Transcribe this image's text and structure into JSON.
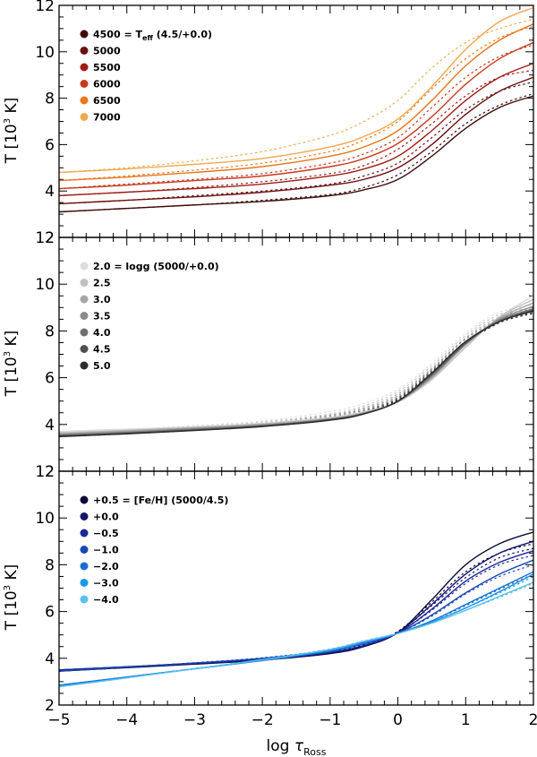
{
  "chart_data": [
    {
      "type": "line",
      "ylabel_main": "T [10",
      "ylabel_sup": "3",
      "ylabel_tail": " K]",
      "xlim": [
        -5,
        2
      ],
      "ylim": [
        2,
        12
      ],
      "yticks": [
        "2",
        "4",
        "6",
        "8",
        "10",
        "12"
      ],
      "legend_position": "top-left",
      "series": [
        {
          "name": "4500 = T",
          "name_sub": "eff",
          "name_tail": " (4.5/+0.0)",
          "color": "#3d0a0a",
          "x": [
            -5,
            -4,
            -3,
            -2,
            -1,
            -0.5,
            0,
            0.5,
            1,
            1.5,
            2
          ],
          "solid": [
            3.1,
            3.25,
            3.4,
            3.55,
            3.8,
            4.05,
            4.5,
            5.5,
            6.7,
            7.6,
            8.1
          ],
          "dashed": [
            3.1,
            3.25,
            3.4,
            3.6,
            3.85,
            4.15,
            4.7,
            5.7,
            6.9,
            7.7,
            8.2
          ]
        },
        {
          "name": "5000",
          "color": "#6b1010",
          "x": [
            -5,
            -4,
            -3,
            -2,
            -1,
            -0.5,
            0,
            0.5,
            1,
            1.5,
            2
          ],
          "solid": [
            3.45,
            3.6,
            3.75,
            3.95,
            4.25,
            4.5,
            5.0,
            6.0,
            7.3,
            8.3,
            8.9
          ],
          "dashed": [
            3.45,
            3.6,
            3.8,
            4.0,
            4.3,
            4.65,
            5.2,
            6.3,
            7.5,
            8.3,
            8.7
          ]
        },
        {
          "name": "5500",
          "color": "#9e1c16",
          "x": [
            -5,
            -4,
            -3,
            -2,
            -1,
            -0.5,
            0,
            0.5,
            1,
            1.5,
            2
          ],
          "solid": [
            3.8,
            3.95,
            4.1,
            4.3,
            4.65,
            4.95,
            5.5,
            6.6,
            7.9,
            8.9,
            9.5
          ],
          "dashed": [
            3.8,
            3.95,
            4.15,
            4.4,
            4.75,
            5.1,
            5.8,
            6.9,
            8.1,
            8.9,
            9.2
          ]
        },
        {
          "name": "6000",
          "color": "#c8381e",
          "x": [
            -5,
            -4,
            -3,
            -2,
            -1,
            -0.5,
            0,
            0.5,
            1,
            1.5,
            2
          ],
          "solid": [
            4.1,
            4.25,
            4.45,
            4.65,
            5.05,
            5.4,
            6.05,
            7.2,
            8.6,
            9.7,
            10.4
          ],
          "dashed": [
            4.1,
            4.3,
            4.5,
            4.75,
            5.2,
            5.6,
            6.3,
            7.6,
            8.9,
            9.8,
            10.3
          ]
        },
        {
          "name": "6500",
          "color": "#e8761e",
          "x": [
            -5,
            -4,
            -3,
            -2,
            -1,
            -0.5,
            0,
            0.5,
            1,
            1.5,
            2
          ],
          "solid": [
            4.45,
            4.6,
            4.8,
            5.05,
            5.5,
            5.9,
            6.6,
            7.9,
            9.4,
            10.5,
            11.2
          ],
          "dashed": [
            4.45,
            4.65,
            4.9,
            5.2,
            5.7,
            6.2,
            7.0,
            8.4,
            9.7,
            10.6,
            11.1
          ]
        },
        {
          "name": "7000",
          "color": "#f0a850",
          "x": [
            -5,
            -4,
            -3,
            -2,
            -1,
            -0.5,
            0,
            0.5,
            1,
            1.5,
            2
          ],
          "solid": [
            4.8,
            4.95,
            5.15,
            5.4,
            5.9,
            6.35,
            7.1,
            8.5,
            10.1,
            11.3,
            11.9
          ],
          "dashed": [
            4.8,
            5.0,
            5.3,
            5.7,
            6.4,
            7.0,
            7.9,
            9.3,
            10.4,
            11.0,
            11.4
          ]
        }
      ]
    },
    {
      "type": "line",
      "ylabel_main": "T [10",
      "ylabel_sup": "3",
      "ylabel_tail": " K]",
      "xlim": [
        -5,
        2
      ],
      "ylim": [
        2,
        12
      ],
      "yticks": [
        "2",
        "4",
        "6",
        "8",
        "10",
        "12"
      ],
      "legend_position": "top-left",
      "series": [
        {
          "name": "2.0 = logg (5000/+0.0)",
          "color": "#dcdcdc",
          "x": [
            -5,
            -4,
            -3,
            -2,
            -1,
            -0.5,
            0,
            0.5,
            1,
            1.5,
            2
          ],
          "solid": [
            3.7,
            3.8,
            3.9,
            4.05,
            4.3,
            4.55,
            4.95,
            5.9,
            7.3,
            8.6,
            9.5
          ],
          "dashed": [
            3.7,
            3.8,
            3.95,
            4.15,
            4.55,
            4.9,
            5.5,
            6.6,
            7.9,
            8.8,
            9.1
          ]
        },
        {
          "name": "2.5",
          "color": "#c0c0c0",
          "x": [
            -5,
            -4,
            -3,
            -2,
            -1,
            -0.5,
            0,
            0.5,
            1,
            1.5,
            2
          ],
          "solid": [
            3.65,
            3.75,
            3.88,
            4.03,
            4.28,
            4.52,
            4.97,
            5.95,
            7.3,
            8.6,
            9.35
          ],
          "dashed": [
            3.65,
            3.75,
            3.9,
            4.1,
            4.45,
            4.8,
            5.4,
            6.5,
            7.8,
            8.7,
            9.0
          ]
        },
        {
          "name": "3.0",
          "color": "#a6a6a6",
          "x": [
            -5,
            -4,
            -3,
            -2,
            -1,
            -0.5,
            0,
            0.5,
            1,
            1.5,
            2
          ],
          "solid": [
            3.6,
            3.72,
            3.85,
            4.0,
            4.25,
            4.5,
            4.97,
            6.0,
            7.4,
            8.55,
            9.2
          ],
          "dashed": [
            3.6,
            3.72,
            3.86,
            4.05,
            4.4,
            4.72,
            5.3,
            6.4,
            7.7,
            8.6,
            8.95
          ]
        },
        {
          "name": "3.5",
          "color": "#8c8c8c",
          "x": [
            -5,
            -4,
            -3,
            -2,
            -1,
            -0.5,
            0,
            0.5,
            1,
            1.5,
            2
          ],
          "solid": [
            3.57,
            3.68,
            3.82,
            3.97,
            4.23,
            4.48,
            4.98,
            6.05,
            7.45,
            8.5,
            9.05
          ],
          "dashed": [
            3.57,
            3.68,
            3.83,
            4.02,
            4.35,
            4.66,
            5.22,
            6.35,
            7.65,
            8.5,
            8.9
          ]
        },
        {
          "name": "4.0",
          "color": "#707070",
          "x": [
            -5,
            -4,
            -3,
            -2,
            -1,
            -0.5,
            0,
            0.5,
            1,
            1.5,
            2
          ],
          "solid": [
            3.54,
            3.65,
            3.79,
            3.95,
            4.22,
            4.47,
            4.99,
            6.1,
            7.45,
            8.45,
            8.95
          ],
          "dashed": [
            3.54,
            3.65,
            3.8,
            3.98,
            4.3,
            4.6,
            5.15,
            6.3,
            7.55,
            8.45,
            8.85
          ]
        },
        {
          "name": "4.5",
          "color": "#505050",
          "x": [
            -5,
            -4,
            -3,
            -2,
            -1,
            -0.5,
            0,
            0.5,
            1,
            1.5,
            2
          ],
          "solid": [
            3.51,
            3.62,
            3.76,
            3.93,
            4.2,
            4.46,
            5.0,
            6.15,
            7.5,
            8.4,
            8.9
          ],
          "dashed": [
            3.51,
            3.62,
            3.77,
            3.95,
            4.26,
            4.56,
            5.1,
            6.25,
            7.5,
            8.4,
            8.8
          ]
        },
        {
          "name": "5.0",
          "color": "#2c2c2c",
          "x": [
            -5,
            -4,
            -3,
            -2,
            -1,
            -0.5,
            0,
            0.5,
            1,
            1.5,
            2
          ],
          "solid": [
            3.48,
            3.6,
            3.74,
            3.91,
            4.18,
            4.45,
            5.0,
            6.2,
            7.55,
            8.4,
            8.85
          ],
          "dashed": [
            3.48,
            3.6,
            3.75,
            3.93,
            4.22,
            4.52,
            5.05,
            6.2,
            7.45,
            8.35,
            8.75
          ]
        }
      ]
    },
    {
      "type": "line",
      "ylabel_main": "T [10",
      "ylabel_sup": "3",
      "ylabel_tail": " K]",
      "xlabel_main": "log ",
      "xlabel_greek": "τ",
      "xlabel_sub": "Ross",
      "xlim": [
        -5,
        2
      ],
      "ylim": [
        2,
        12
      ],
      "xticks": [
        "−5",
        "−4",
        "−3",
        "−2",
        "−1",
        "0",
        "1",
        "2"
      ],
      "yticks": [
        "2",
        "4",
        "6",
        "8",
        "10",
        "12"
      ],
      "legend_position": "top-left",
      "series": [
        {
          "name": "+0.5 = [Fe/H] (5000/4.5)",
          "color": "#0a0a3a",
          "x": [
            -5,
            -4,
            -3,
            -2,
            -1,
            -0.5,
            0,
            0.5,
            1,
            1.5,
            2
          ],
          "solid": [
            3.45,
            3.6,
            3.75,
            3.92,
            4.2,
            4.5,
            5.1,
            6.5,
            8.0,
            8.9,
            9.4
          ],
          "dashed": [
            3.45,
            3.6,
            3.76,
            3.95,
            4.25,
            4.56,
            5.15,
            6.4,
            7.7,
            8.5,
            8.9
          ]
        },
        {
          "name": "+0.0",
          "color": "#14146e",
          "x": [
            -5,
            -4,
            -3,
            -2,
            -1,
            -0.5,
            0,
            0.5,
            1,
            1.5,
            2
          ],
          "solid": [
            3.5,
            3.63,
            3.77,
            3.94,
            4.22,
            4.52,
            5.1,
            6.3,
            7.6,
            8.5,
            9.0
          ],
          "dashed": [
            3.5,
            3.63,
            3.78,
            3.96,
            4.26,
            4.57,
            5.12,
            6.25,
            7.45,
            8.3,
            8.7
          ]
        },
        {
          "name": "−0.5",
          "color": "#1a2896",
          "x": [
            -5,
            -4,
            -3,
            -2,
            -1,
            -0.5,
            0,
            0.5,
            1,
            1.5,
            2
          ],
          "solid": [
            3.5,
            3.64,
            3.79,
            3.97,
            4.26,
            4.55,
            5.08,
            6.1,
            7.3,
            8.1,
            8.6
          ],
          "dashed": [
            3.5,
            3.64,
            3.8,
            3.99,
            4.3,
            4.6,
            5.1,
            6.05,
            7.2,
            8.0,
            8.4
          ]
        },
        {
          "name": "−1.0",
          "color": "#1c48b4",
          "x": [
            -5,
            -4,
            -3,
            -2,
            -1,
            -0.5,
            0,
            0.5,
            1,
            1.5,
            2
          ],
          "solid": [
            3.45,
            3.62,
            3.8,
            4.0,
            4.32,
            4.62,
            5.07,
            5.85,
            6.8,
            7.6,
            8.2
          ],
          "dashed": [
            3.45,
            3.62,
            3.81,
            4.02,
            4.35,
            4.66,
            5.08,
            5.8,
            6.75,
            7.5,
            8.0
          ]
        },
        {
          "name": "−2.0",
          "color": "#1a6ed2",
          "x": [
            -5,
            -4,
            -3,
            -2,
            -1,
            -0.5,
            0,
            0.5,
            1,
            1.5,
            2
          ],
          "solid": [
            2.85,
            3.2,
            3.55,
            3.9,
            4.3,
            4.65,
            5.06,
            5.6,
            6.3,
            7.0,
            7.7
          ],
          "dashed": [
            2.85,
            3.2,
            3.56,
            3.92,
            4.33,
            4.68,
            5.07,
            5.6,
            6.25,
            6.95,
            7.6
          ]
        },
        {
          "name": "−3.0",
          "color": "#1c96e6",
          "x": [
            -5,
            -4,
            -3,
            -2,
            -1,
            -0.5,
            0,
            0.5,
            1,
            1.5,
            2
          ],
          "solid": [
            2.8,
            3.18,
            3.55,
            3.92,
            4.35,
            4.7,
            5.06,
            5.55,
            6.15,
            6.85,
            7.6
          ],
          "dashed": [
            2.8,
            3.18,
            3.56,
            3.94,
            4.37,
            4.72,
            5.07,
            5.55,
            6.15,
            6.8,
            7.5
          ]
        },
        {
          "name": "−4.0",
          "color": "#5ac0f0",
          "x": [
            -5,
            -4,
            -3,
            -2,
            -1,
            -0.5,
            0,
            0.5,
            1,
            1.5,
            2
          ],
          "solid": [
            2.78,
            3.16,
            3.55,
            3.94,
            4.38,
            4.73,
            5.06,
            5.5,
            6.05,
            6.65,
            7.25
          ],
          "dashed": [
            2.78,
            3.16,
            3.56,
            3.96,
            4.4,
            4.75,
            5.07,
            5.5,
            6.05,
            6.6,
            7.2
          ]
        }
      ]
    }
  ]
}
